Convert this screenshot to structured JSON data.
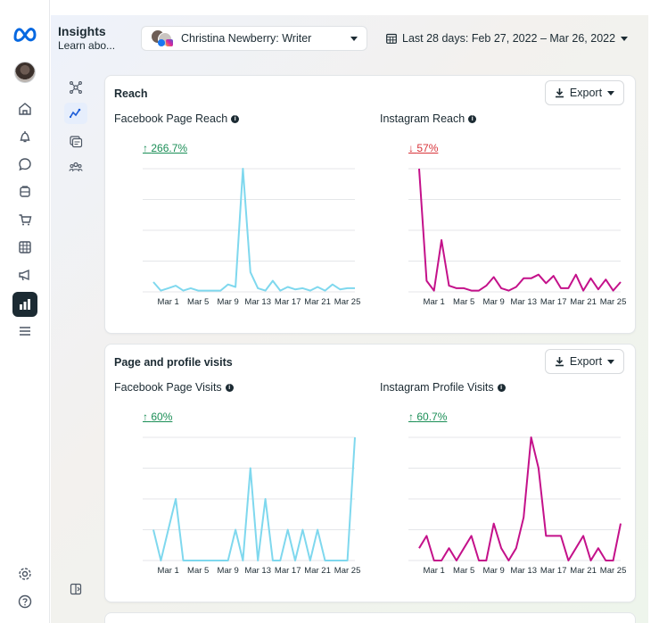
{
  "header": {
    "title": "Insights",
    "subtitle": "Learn abo...",
    "account": "Christina Newberry: Writer",
    "date_range": "Last 28 days: Feb 27, 2022 – Mar 26, 2022"
  },
  "icons": {
    "rail": [
      "meta-logo",
      "home-icon",
      "bell-icon",
      "chat-icon",
      "posts-icon",
      "shop-icon",
      "table-icon",
      "megaphone-icon",
      "insights-icon",
      "menu-icon",
      "settings-icon",
      "help-icon"
    ],
    "subnav": [
      "overview-icon",
      "trends-icon",
      "content-icon",
      "audience-icon",
      "panel-toggle-icon"
    ]
  },
  "colors": {
    "facebook_series": "#7fd8ee",
    "instagram_series": "#c4118a",
    "up": "#1a8e56",
    "down": "#d8343a",
    "active_nav": "#1c2b33"
  },
  "cards": {
    "reach": {
      "title": "Reach",
      "export_label": "Export",
      "left_title": "Facebook Page Reach",
      "left_delta": "266.7%",
      "left_delta_arrow": "↑",
      "right_title": "Instagram Reach",
      "right_delta": "57%",
      "right_delta_arrow": "↓"
    },
    "visits": {
      "title": "Page and profile visits",
      "export_label": "Export",
      "left_title": "Facebook Page Visits",
      "left_delta": "60%",
      "left_delta_arrow": "↑",
      "right_title": "Instagram Profile Visits",
      "right_delta": "60.7%",
      "right_delta_arrow": "↑"
    }
  },
  "chart_data": [
    {
      "id": "facebook-page-reach",
      "type": "line",
      "title": "Facebook Page Reach",
      "x_tick_labels": [
        "Mar 1",
        "Mar 5",
        "Mar 9",
        "Mar 13",
        "Mar 17",
        "Mar 21",
        "Mar 25"
      ],
      "series": [
        {
          "color": "#7fd8ee",
          "values": [
            8,
            1,
            3,
            5,
            1,
            3,
            1,
            1,
            1,
            1,
            6,
            4,
            100,
            16,
            3,
            1,
            9,
            1,
            4,
            2,
            3,
            1,
            4,
            1,
            6,
            2,
            3,
            3
          ]
        }
      ],
      "ylim": [
        0,
        100
      ],
      "grid": true
    },
    {
      "id": "instagram-reach",
      "type": "line",
      "title": "Instagram Reach",
      "x_tick_labels": [
        "Mar 1",
        "Mar 5",
        "Mar 9",
        "Mar 13",
        "Mar 17",
        "Mar 21",
        "Mar 25"
      ],
      "series": [
        {
          "color": "#c4118a",
          "values": [
            100,
            9,
            1,
            42,
            5,
            3,
            3,
            1,
            1,
            5,
            12,
            3,
            1,
            4,
            11,
            11,
            14,
            7,
            13,
            3,
            3,
            14,
            1,
            11,
            2,
            10,
            1,
            8
          ]
        }
      ],
      "ylim": [
        0,
        100
      ],
      "grid": true
    },
    {
      "id": "facebook-page-visits",
      "type": "line",
      "title": "Facebook Page Visits",
      "x_tick_labels": [
        "Mar 1",
        "Mar 5",
        "Mar 9",
        "Mar 13",
        "Mar 17",
        "Mar 21",
        "Mar 25"
      ],
      "series": [
        {
          "color": "#7fd8ee",
          "values": [
            25,
            0,
            25,
            50,
            0,
            0,
            0,
            0,
            0,
            0,
            0,
            25,
            0,
            75,
            0,
            50,
            0,
            0,
            25,
            0,
            25,
            0,
            25,
            0,
            0,
            0,
            0,
            100
          ]
        }
      ],
      "ylim": [
        0,
        100
      ],
      "grid": true
    },
    {
      "id": "instagram-profile-visits",
      "type": "line",
      "title": "Instagram Profile Visits",
      "x_tick_labels": [
        "Mar 1",
        "Mar 5",
        "Mar 9",
        "Mar 13",
        "Mar 17",
        "Mar 21",
        "Mar 25"
      ],
      "series": [
        {
          "color": "#c4118a",
          "values": [
            10,
            20,
            0,
            0,
            10,
            0,
            10,
            20,
            0,
            0,
            30,
            10,
            0,
            10,
            35,
            100,
            75,
            20,
            20,
            20,
            0,
            10,
            20,
            0,
            10,
            0,
            0,
            30
          ]
        }
      ],
      "ylim": [
        0,
        100
      ],
      "grid": true
    }
  ]
}
